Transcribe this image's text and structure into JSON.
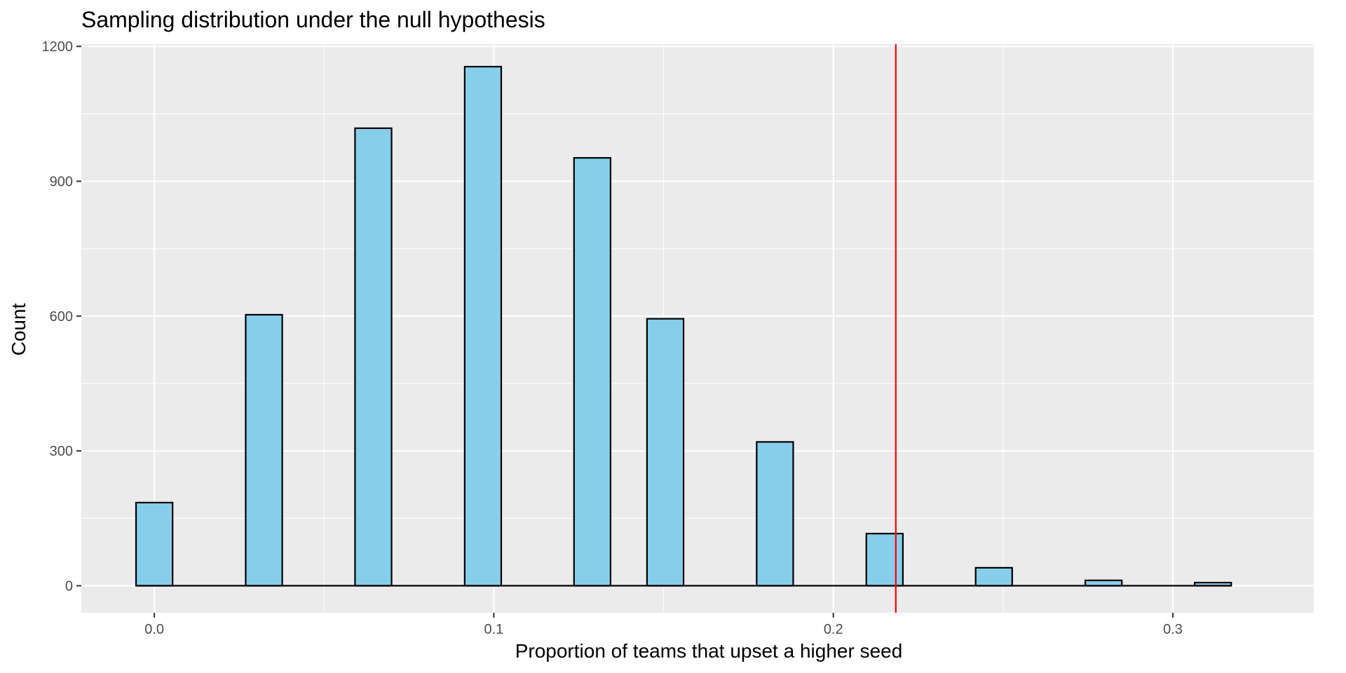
{
  "chart_data": {
    "type": "bar",
    "title": "Sampling distribution under the null hypothesis",
    "xlabel": "Proportion of teams that upset a higher seed",
    "ylabel": "Count",
    "xlim": [
      -0.0215,
      0.3415
    ],
    "ylim": [
      -60,
      1205
    ],
    "x_ticks": [
      {
        "value": 0.0,
        "label": "0.0"
      },
      {
        "value": 0.1,
        "label": "0.1"
      },
      {
        "value": 0.2,
        "label": "0.2"
      },
      {
        "value": 0.3,
        "label": "0.3"
      }
    ],
    "y_ticks": [
      {
        "value": 0,
        "label": "0"
      },
      {
        "value": 300,
        "label": "300"
      },
      {
        "value": 600,
        "label": "600"
      },
      {
        "value": 900,
        "label": "900"
      },
      {
        "value": 1200,
        "label": "1200"
      }
    ],
    "grid": true,
    "bin_width": 0.010766,
    "bins": [
      {
        "center": 0.0,
        "count": 185
      },
      {
        "center": 0.0323,
        "count": 603
      },
      {
        "center": 0.0645,
        "count": 1018
      },
      {
        "center": 0.0968,
        "count": 1155
      },
      {
        "center": 0.129,
        "count": 952
      },
      {
        "center": 0.1505,
        "count": 594
      },
      {
        "center": 0.1828,
        "count": 320
      },
      {
        "center": 0.2151,
        "count": 116
      },
      {
        "center": 0.2473,
        "count": 40
      },
      {
        "center": 0.2796,
        "count": 12
      },
      {
        "center": 0.3118,
        "count": 7
      }
    ],
    "reference_line": {
      "x": 0.2184,
      "color": "#ff0000"
    },
    "colors": {
      "bar_fill": "#87ceeb",
      "bar_outline": "#000000",
      "panel_background": "#ebebeb",
      "grid": "#ffffff",
      "reference_line": "#ff0000"
    }
  }
}
